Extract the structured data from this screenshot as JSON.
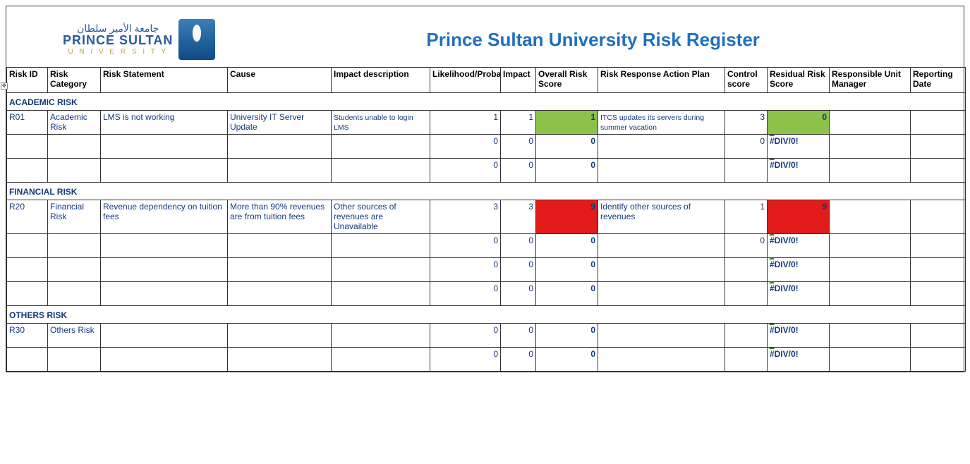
{
  "logo": {
    "arabic": "جامعة الأمير سلطان",
    "main": "PRINCE SULTAN",
    "sub": "U N I V E R S I T Y"
  },
  "title": "Prince Sultan University Risk Register",
  "columns": {
    "c0": "Risk ID",
    "c1": "Risk Category",
    "c2": "Risk Statement",
    "c3": "Cause",
    "c4": "Impact description",
    "c5": "Likelihood/Probability",
    "c6": "Impact",
    "c7": "Overall Risk Score",
    "c8": "Risk Response Action Plan",
    "c9": "Control score",
    "c10": "Residual Risk Score",
    "c11": "Responsible Unit Manager",
    "c12": "Reporting Date"
  },
  "sections": {
    "s0": {
      "title": "ACADEMIC RISK"
    },
    "s1": {
      "title": "FINANCIAL RISK"
    },
    "s2": {
      "title": "OTHERS RISK"
    }
  },
  "rows": {
    "r01": {
      "id": "R01",
      "cat": "Academic Risk",
      "stmt": "LMS is not working",
      "cause": "University IT Server Update",
      "impact": "Students unable to login LMS",
      "like": "1",
      "impn": "1",
      "overall": "1",
      "overall_bg": "#8bc34a",
      "plan": "ITCS updates its servers during summer vacation",
      "ctrl": "3",
      "res": "0",
      "res_bg": "#8bc34a"
    },
    "a2": {
      "like": "0",
      "impn": "0",
      "overall": "0",
      "ctrl": "0",
      "res": "#DIV/0!"
    },
    "a3": {
      "like": "0",
      "impn": "0",
      "overall": "0",
      "ctrl": "",
      "res": "#DIV/0!"
    },
    "r20": {
      "id": "R20",
      "cat": "Financial Risk",
      "stmt": "Revenue dependency on tuition fees",
      "cause": "More than 90% revenues are from tuition fees",
      "impact": "Other sources of revenues are Unavailable",
      "like": "3",
      "impn": "3",
      "overall": "9",
      "overall_bg": "#e21b1b",
      "plan": "Identify other sources of revenues",
      "ctrl": "1",
      "res": "9",
      "res_bg": "#e21b1b"
    },
    "f2": {
      "like": "0",
      "impn": "0",
      "overall": "0",
      "ctrl": "0",
      "res": "#DIV/0!"
    },
    "f3": {
      "like": "0",
      "impn": "0",
      "overall": "0",
      "ctrl": "",
      "res": "#DIV/0!"
    },
    "f4": {
      "like": "0",
      "impn": "0",
      "overall": "0",
      "ctrl": "",
      "res": "#DIV/0!"
    },
    "r30": {
      "id": "R30",
      "cat": "Others Risk",
      "like": "0",
      "impn": "0",
      "overall": "0",
      "ctrl": "",
      "res": "#DIV/0!"
    },
    "o2": {
      "like": "0",
      "impn": "0",
      "overall": "0",
      "ctrl": "",
      "res": "#DIV/0!"
    }
  },
  "colors": {
    "green": "#8bc34a",
    "red": "#e21b1b",
    "heading": "#133a7a",
    "title": "#1f6fc0"
  }
}
